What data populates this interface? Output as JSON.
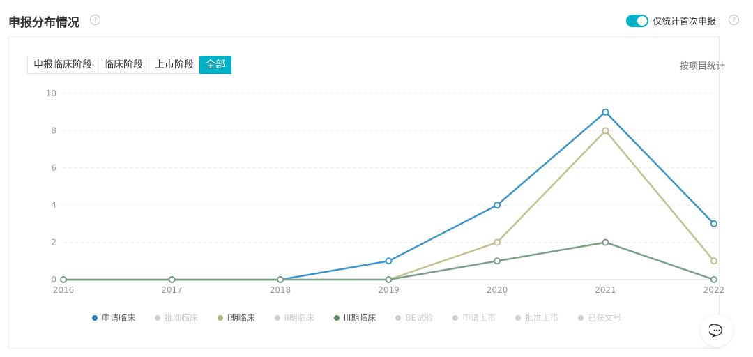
{
  "header": {
    "title": "申报分布情况",
    "help_icon": "question-circle-icon",
    "toggle_label": "仅统计首次申报",
    "toggle_on": true
  },
  "tabs": [
    {
      "label": "申报临床阶段",
      "active": false
    },
    {
      "label": "临床阶段",
      "active": false
    },
    {
      "label": "上市阶段",
      "active": false
    },
    {
      "label": "全部",
      "active": true
    }
  ],
  "stat_label": "按项目统计",
  "chart_data": {
    "type": "line",
    "x": [
      "2016",
      "2017",
      "2018",
      "2019",
      "2020",
      "2021",
      "2022"
    ],
    "ylim": [
      0,
      10
    ],
    "yticks": [
      "0",
      "2",
      "4",
      "6",
      "8",
      "10"
    ],
    "grid": true,
    "series": [
      {
        "name": "申请临床",
        "values": [
          0,
          0,
          0,
          1,
          4,
          9,
          3
        ],
        "color": "#3a96c9",
        "legend_color": "#1f7fc0",
        "visible": true
      },
      {
        "name": "批准临床",
        "values": null,
        "color": "#cccccc",
        "visible": false
      },
      {
        "name": "I期临床",
        "values": [
          0,
          0,
          0,
          0,
          2,
          8,
          1
        ],
        "color": "#c2c290",
        "legend_color": "#b5b57f",
        "visible": true
      },
      {
        "name": "II期临床",
        "values": null,
        "color": "#cccccc",
        "visible": false
      },
      {
        "name": "III期临床",
        "values": [
          0,
          0,
          0,
          0,
          1,
          2,
          0
        ],
        "color": "#7a9e87",
        "legend_color": "#5a8a6a",
        "visible": true
      },
      {
        "name": "BE试验",
        "values": null,
        "color": "#cccccc",
        "visible": false
      },
      {
        "name": "申请上市",
        "values": null,
        "color": "#cccccc",
        "visible": false
      },
      {
        "name": "批准上市",
        "values": null,
        "color": "#cccccc",
        "visible": false
      },
      {
        "name": "已获文号",
        "values": null,
        "color": "#cccccc",
        "visible": false
      }
    ],
    "legend_placement": "bottom"
  },
  "chat_icon": "chat-bubble-icon"
}
